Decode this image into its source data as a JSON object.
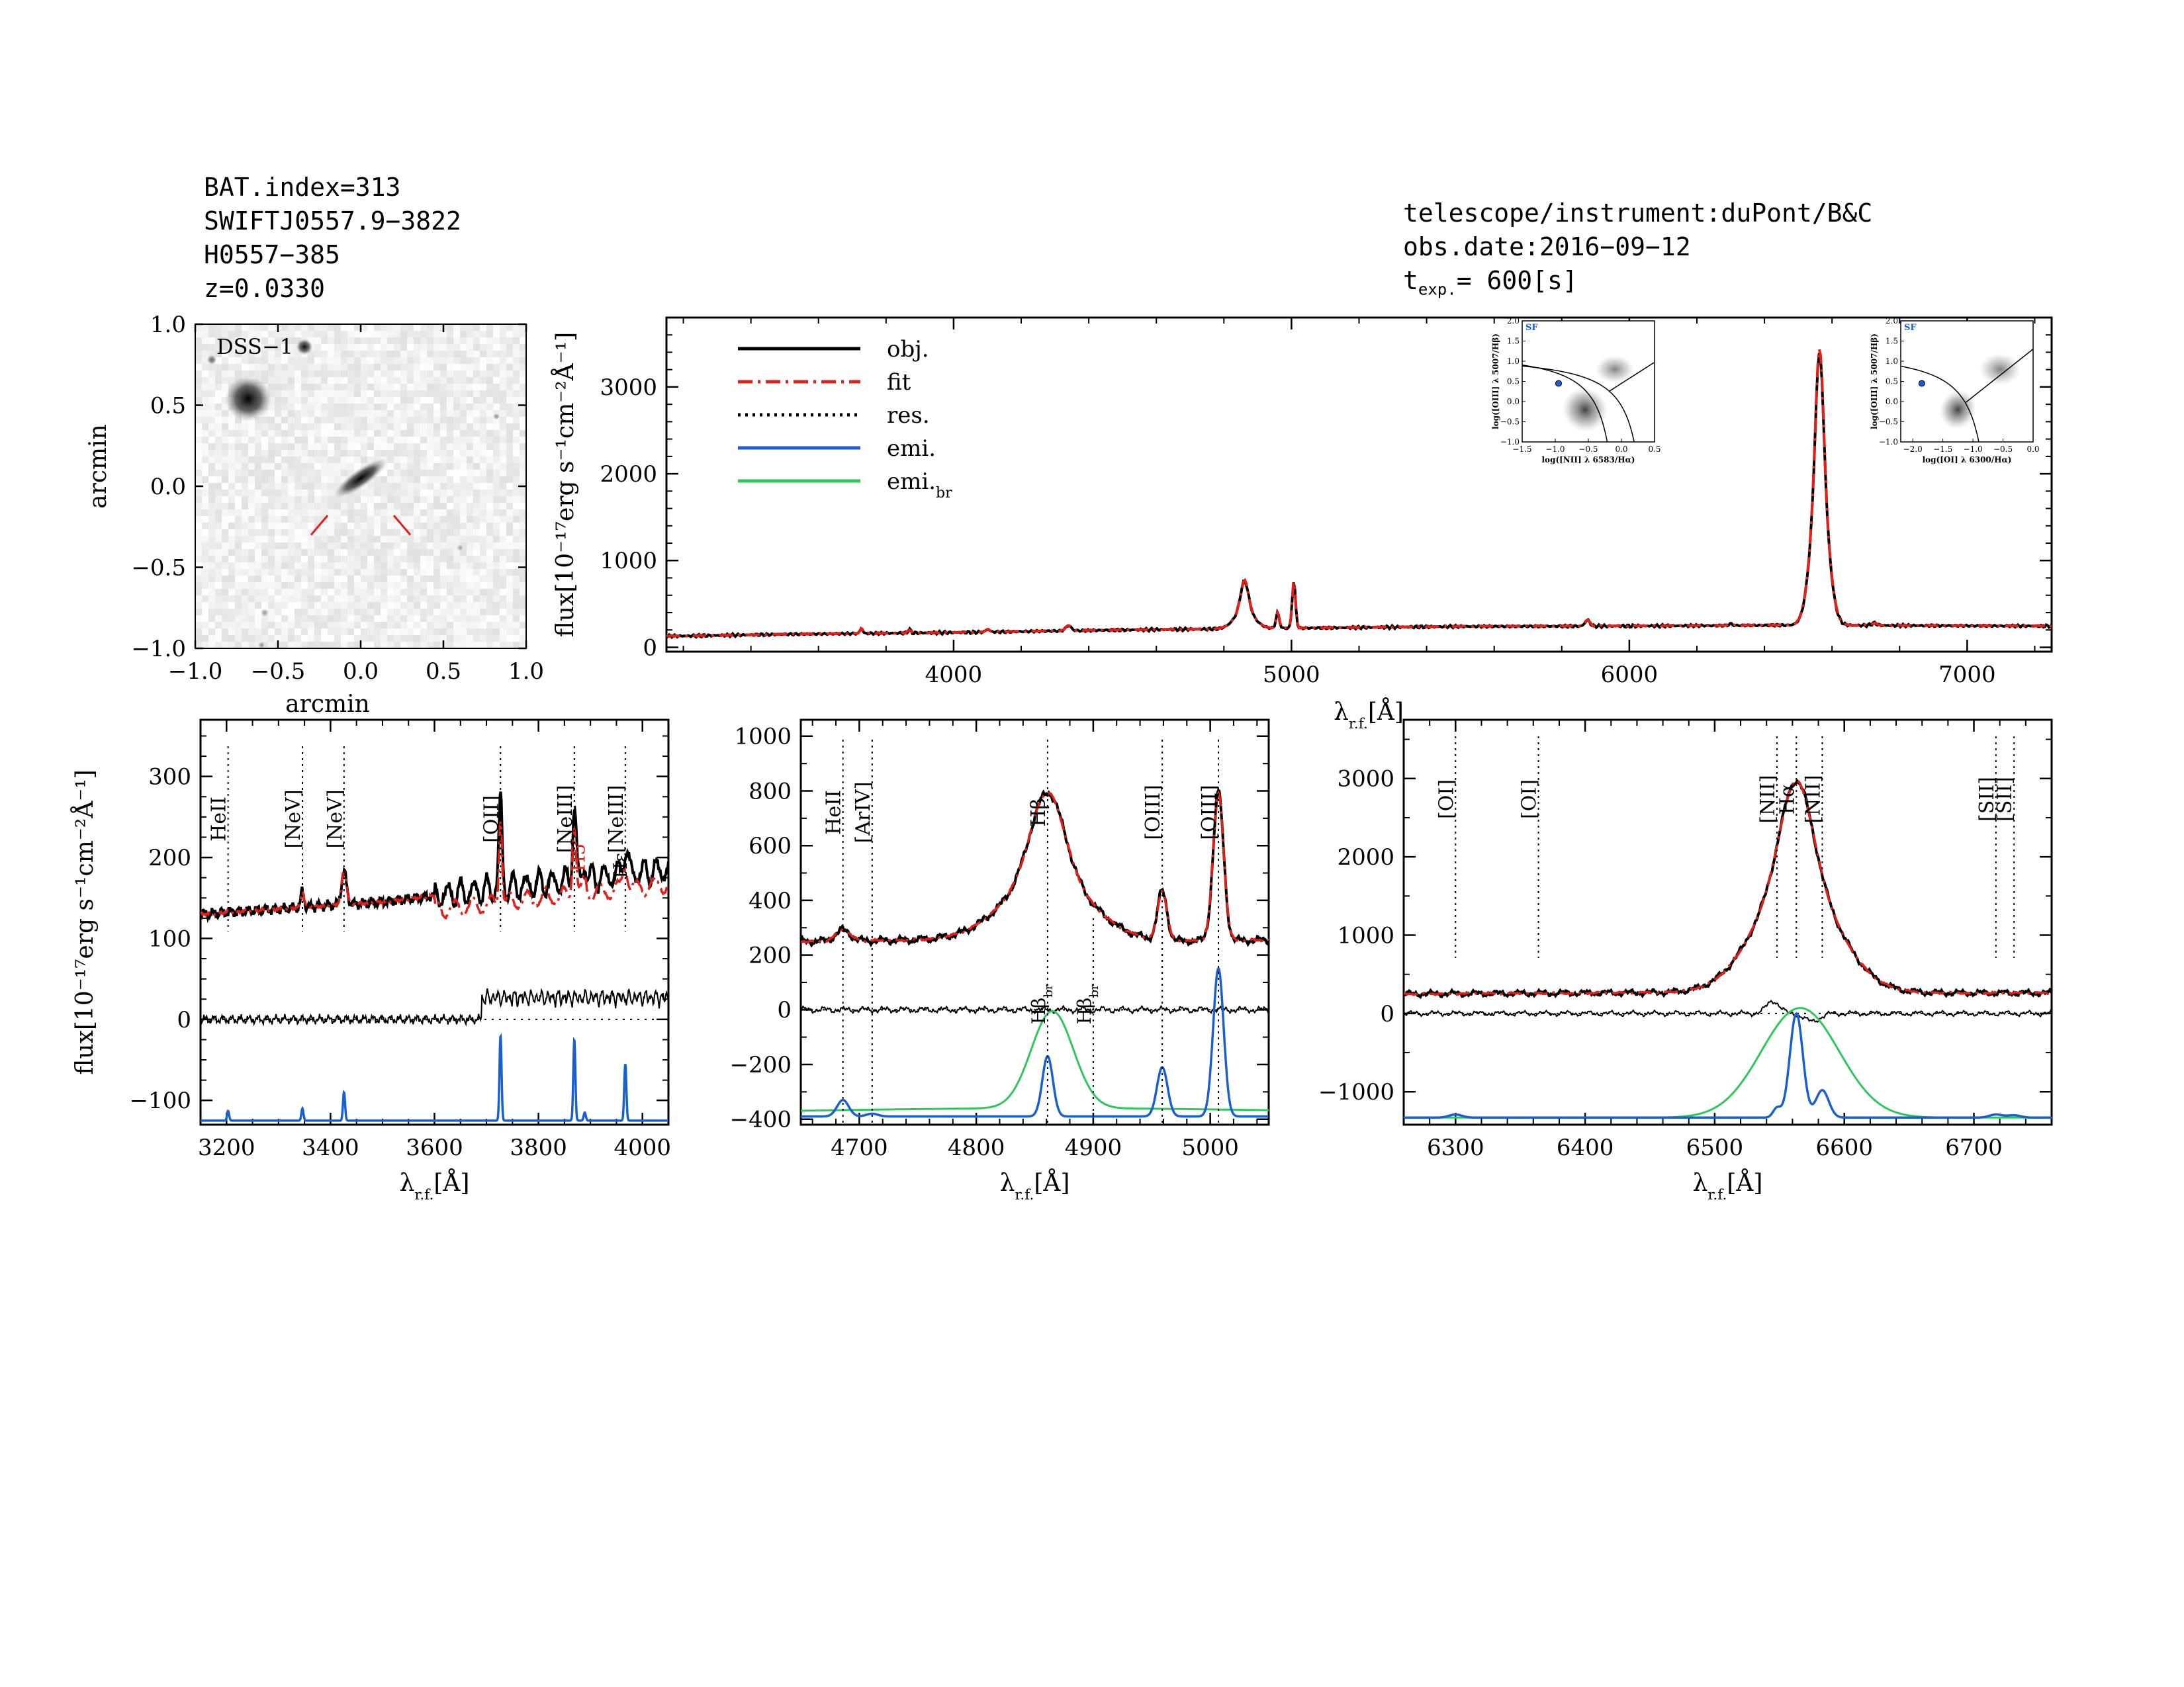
{
  "header_left": [
    "BAT.index=313",
    "SWIFTJ0557.9−3822",
    "H0557−385",
    "z=0.0330"
  ],
  "header_right": {
    "instrument": "telescope/instrument:duPont/B&C",
    "obs_date": "obs.date:2016−09−12",
    "texp_prefix": "t",
    "texp_sub": "exp.",
    "texp_value": "=  600[s]"
  },
  "colors": {
    "obj": "#000000",
    "fit": "#e0201a",
    "emi": "#1a5fd0",
    "emi_br": "#2ec85a"
  },
  "chart_data": [
    {
      "id": "image",
      "type": "image",
      "label": "DSS−1",
      "xlabel": "arcmin",
      "ylabel": "arcmin",
      "xlim": [
        -1.0,
        1.0
      ],
      "ylim": [
        -1.0,
        1.0
      ],
      "xticks": [
        -1.0,
        -0.5,
        0.0,
        0.5,
        1.0
      ],
      "yticks": [
        -1.0,
        -0.5,
        0.0,
        0.5,
        1.0
      ],
      "xtick_labels": [
        "−1.0",
        "−0.5",
        "0.0",
        "0.5",
        "1.0"
      ],
      "ytick_labels": [
        "−1.0",
        "−0.5",
        "0.0",
        "0.5",
        "1.0"
      ],
      "sources": [
        {
          "x": -0.68,
          "y": 0.54,
          "sx": 0.14,
          "sy": 0.14,
          "rot": 0,
          "amp": 1.0
        },
        {
          "x": -0.34,
          "y": 0.86,
          "sx": 0.05,
          "sy": 0.05,
          "rot": 0,
          "amp": 0.95
        },
        {
          "x": -0.9,
          "y": 0.78,
          "sx": 0.03,
          "sy": 0.03,
          "rot": 0,
          "amp": 0.6
        },
        {
          "x": 0.0,
          "y": 0.05,
          "sx": 0.19,
          "sy": 0.055,
          "rot": -35,
          "amp": 1.0
        },
        {
          "x": 0.82,
          "y": 0.43,
          "sx": 0.02,
          "sy": 0.02,
          "rot": 0,
          "amp": 0.4
        },
        {
          "x": -0.58,
          "y": -0.78,
          "sx": 0.025,
          "sy": 0.025,
          "rot": 0,
          "amp": 0.4
        },
        {
          "x": -0.6,
          "y": -0.98,
          "sx": 0.02,
          "sy": 0.02,
          "rot": 0,
          "amp": 0.4
        },
        {
          "x": 0.6,
          "y": -0.38,
          "sx": 0.02,
          "sy": 0.02,
          "rot": 0,
          "amp": 0.3
        }
      ],
      "markers": [
        [
          -0.2,
          -0.18,
          -0.3,
          -0.3
        ],
        [
          0.2,
          -0.18,
          0.3,
          -0.3
        ]
      ]
    },
    {
      "id": "main",
      "type": "line",
      "xlim": [
        3150,
        7250
      ],
      "ylim": [
        -50,
        3800
      ],
      "xticks": [
        4000,
        5000,
        6000,
        7000
      ],
      "yticks": [
        0,
        1000,
        2000,
        3000
      ],
      "ylabel": "flux[10⁻¹⁷erg s⁻¹cm⁻²Å⁻¹]",
      "xlabel": "λr.f.[Å]",
      "xlabel_main": "λ",
      "xlabel_sub": "r.f.",
      "xlabel_unit": "[Å]",
      "continuum": [
        [
          3200,
          130
        ],
        [
          3500,
          150
        ],
        [
          4000,
          170
        ],
        [
          4500,
          200
        ],
        [
          5000,
          220
        ],
        [
          5500,
          240
        ],
        [
          6000,
          245
        ],
        [
          6500,
          255
        ],
        [
          7200,
          245
        ]
      ],
      "lines": [
        {
          "c": 3727,
          "a": 60,
          "s": 4
        },
        {
          "c": 3869,
          "a": 40,
          "s": 4
        },
        {
          "c": 4101,
          "a": 30,
          "s": 6
        },
        {
          "c": 4340,
          "a": 60,
          "s": 8
        },
        {
          "c": 4861,
          "a": 330,
          "s": 11
        },
        {
          "c": 4861,
          "a": 220,
          "s": 28
        },
        {
          "c": 4959,
          "a": 180,
          "s": 5
        },
        {
          "c": 5007,
          "a": 540,
          "s": 5
        },
        {
          "c": 5876,
          "a": 70,
          "s": 7
        },
        {
          "c": 6563,
          "a": 1400,
          "s": 11
        },
        {
          "c": 6563,
          "a": 1750,
          "s": 24
        },
        {
          "c": 6300,
          "a": 20,
          "s": 5
        },
        {
          "c": 6725,
          "a": 25,
          "s": 8
        }
      ],
      "legend": [
        {
          "label": "obj.",
          "style": "solid",
          "color": "#000000"
        },
        {
          "label": "fit",
          "style": "dashdot",
          "color": "#e0201a"
        },
        {
          "label": "res.",
          "style": "dotted",
          "color": "#000000"
        },
        {
          "label": "emi.",
          "style": "solid",
          "color": "#1a5fd0"
        },
        {
          "label": "emi.",
          "sub": "br",
          "style": "solid",
          "color": "#2ec85a"
        }
      ]
    },
    {
      "id": "inset1",
      "type": "scatter",
      "tag": "SF",
      "xlim": [
        -1.5,
        0.5
      ],
      "ylim": [
        -1.0,
        2.0
      ],
      "xticks": [
        -1.5,
        -1.0,
        -0.5,
        0.0,
        0.5
      ],
      "xtick_labels": [
        "−1.5",
        "−1.0",
        "−0.5",
        "0.0",
        "0.5"
      ],
      "yticks": [
        -1.0,
        -0.5,
        0.0,
        0.5,
        1.0,
        1.5,
        2.0
      ],
      "ytick_labels": [
        "−1.0",
        "−0.5",
        "0.0",
        "0.5",
        "1.0",
        "1.5",
        "2.0"
      ],
      "xlabel": "log([NII] λ 6583/Hα)",
      "ylabel": "log([OIII] λ 5007/Hβ)",
      "point": [
        -0.95,
        0.45
      ],
      "blobs": [
        {
          "x": -0.55,
          "y": -0.2,
          "sx": 0.35,
          "sy": 0.55,
          "rot": 30,
          "amp": 0.9
        },
        {
          "x": -0.1,
          "y": 0.8,
          "sx": 0.3,
          "sy": 0.35,
          "rot": 0,
          "amp": 0.6
        }
      ],
      "curves": [
        "kauffmann",
        "kewley_nii",
        "seyfert_liner_nii"
      ]
    },
    {
      "id": "inset2",
      "type": "scatter",
      "tag": "SF",
      "xlim": [
        -2.2,
        0.0
      ],
      "ylim": [
        -1.0,
        2.0
      ],
      "xticks": [
        -2.0,
        -1.5,
        -1.0,
        -0.5,
        0.0
      ],
      "xtick_labels": [
        "−2.0",
        "−1.5",
        "−1.0",
        "−0.5",
        "0.0"
      ],
      "yticks": [
        -1.0,
        -0.5,
        0.0,
        0.5,
        1.0,
        1.5,
        2.0
      ],
      "ytick_labels": [
        "−1.0",
        "−0.5",
        "0.0",
        "0.5",
        "1.0",
        "1.5",
        "2.0"
      ],
      "xlabel": "log([OI] λ 6300/Hα)",
      "ylabel": "log([OIII] λ 5007/Hβ)",
      "point": [
        -1.85,
        0.45
      ],
      "blobs": [
        {
          "x": -1.25,
          "y": -0.2,
          "sx": 0.3,
          "sy": 0.5,
          "rot": 25,
          "amp": 0.9
        },
        {
          "x": -0.55,
          "y": 0.8,
          "sx": 0.35,
          "sy": 0.4,
          "rot": 0,
          "amp": 0.6
        }
      ],
      "curves": [
        "kewley_oi",
        "seyfert_liner_oi"
      ]
    },
    {
      "id": "zoom1",
      "type": "line",
      "xlim": [
        3150,
        4050
      ],
      "ylim": [
        -130,
        370
      ],
      "xticks": [
        3200,
        3400,
        3600,
        3800,
        4000
      ],
      "yticks": [
        -100,
        0,
        100,
        200,
        300
      ],
      "ytick_labels": [
        "−100",
        "0",
        "100",
        "200",
        "300"
      ],
      "ylabel": "flux[10⁻¹⁷erg s⁻¹cm⁻²Å⁻¹]",
      "xlabel": "λr.f.[Å]",
      "continuum": [
        [
          3150,
          130
        ],
        [
          3500,
          145
        ],
        [
          3700,
          160
        ],
        [
          4050,
          185
        ]
      ],
      "lines": [
        {
          "c": 3346,
          "a": 20,
          "s": 3
        },
        {
          "c": 3426,
          "a": 40,
          "s": 5
        },
        {
          "c": 3727,
          "a": 110,
          "s": 3
        },
        {
          "c": 3869,
          "a": 90,
          "s": 3.5
        },
        {
          "c": 3967,
          "a": 30,
          "s": 5
        },
        {
          "c": 3889,
          "a": 20,
          "s": 3
        }
      ],
      "emi": [
        {
          "c": 3203,
          "a": 12,
          "s": 2
        },
        {
          "c": 3346,
          "a": 15,
          "s": 2
        },
        {
          "c": 3426,
          "a": 35,
          "s": 2
        },
        {
          "c": 3727,
          "a": 105,
          "s": 2
        },
        {
          "c": 3869,
          "a": 100,
          "s": 2
        },
        {
          "c": 3889,
          "a": 10,
          "s": 2
        },
        {
          "c": 3967,
          "a": 70,
          "s": 2
        }
      ],
      "emi_base": -125,
      "res_dotted_from": 3690,
      "fit_dashed_from": 3600,
      "line_labels": [
        {
          "x": 3203,
          "label": "HeII"
        },
        {
          "x": 3346,
          "label": "[NeV]"
        },
        {
          "x": 3426,
          "label": "[NeV]"
        },
        {
          "x": 3727,
          "label": "[OII]"
        },
        {
          "x": 3869,
          "label": "[NeIII]"
        },
        {
          "x": 3967,
          "label": "[NeIII]"
        }
      ],
      "extra_labels": [
        {
          "x": 3889,
          "y": 200,
          "label": "H5",
          "color": "#e0201a"
        },
        {
          "x": 3970,
          "y": 190,
          "label": "Hε",
          "color": "#000000"
        }
      ]
    },
    {
      "id": "zoom2",
      "type": "line",
      "xlim": [
        4650,
        5050
      ],
      "ylim": [
        -420,
        1060
      ],
      "xticks": [
        4700,
        4800,
        4900,
        5000
      ],
      "yticks": [
        -400,
        -200,
        0,
        200,
        400,
        600,
        800,
        1000
      ],
      "ytick_labels": [
        "−400",
        "−200",
        "0",
        "200",
        "400",
        "600",
        "800",
        "1000"
      ],
      "xlabel": "λr.f.[Å]",
      "continuum": [
        [
          4650,
          250
        ],
        [
          4750,
          255
        ],
        [
          4850,
          265
        ],
        [
          4950,
          250
        ],
        [
          5050,
          255
        ]
      ],
      "lines": [
        {
          "c": 4686,
          "a": 40,
          "s": 6
        },
        {
          "c": 4861,
          "a": 300,
          "s": 14
        },
        {
          "c": 4861,
          "a": 230,
          "s": 35
        },
        {
          "c": 4959,
          "a": 180,
          "s": 4
        },
        {
          "c": 5007,
          "a": 540,
          "s": 4.5
        }
      ],
      "emi": [
        {
          "c": 4686,
          "a": 60,
          "s": 5
        },
        {
          "c": 4711,
          "a": 10,
          "s": 5
        },
        {
          "c": 4861,
          "a": 220,
          "s": 4.5
        },
        {
          "c": 4959,
          "a": 180,
          "s": 4.5
        },
        {
          "c": 5007,
          "a": 540,
          "s": 4.5
        }
      ],
      "emi_base": -390,
      "broad": {
        "c": 4865,
        "a": 355,
        "s": 18,
        "base": -390,
        "wing_a": 30,
        "wing_s": 250
      },
      "line_labels": [
        {
          "x": 4686,
          "label": "HeII"
        },
        {
          "x": 4711,
          "label": "[ArIV]"
        },
        {
          "x": 4861,
          "label": "Hβ"
        },
        {
          "x": 4959,
          "label": "[OIII]"
        },
        {
          "x": 5007,
          "label": "[OIII]"
        }
      ],
      "br_labels": [
        {
          "x": 4861,
          "label": "Hβ",
          "sub": "br"
        },
        {
          "x": 4900,
          "label": "Hβ",
          "sub": "br"
        }
      ]
    },
    {
      "id": "zoom3",
      "type": "line",
      "xlim": [
        6260,
        6760
      ],
      "ylim": [
        -1420,
        3750
      ],
      "xticks": [
        6300,
        6400,
        6500,
        6600,
        6700
      ],
      "yticks": [
        -1000,
        0,
        1000,
        2000,
        3000
      ],
      "ytick_labels": [
        "−1000",
        "0",
        "1000",
        "2000",
        "3000"
      ],
      "xlabel": "λr.f.[Å]",
      "continuum": [
        [
          6260,
          250
        ],
        [
          6500,
          270
        ],
        [
          6760,
          260
        ]
      ],
      "lines": [
        {
          "c": 6563,
          "a": 1200,
          "s": 12
        },
        {
          "c": 6563,
          "a": 1500,
          "s": 30
        }
      ],
      "emi": [
        {
          "c": 6300,
          "a": 40,
          "s": 5
        },
        {
          "c": 6548,
          "a": 120,
          "s": 3
        },
        {
          "c": 6563,
          "a": 1330,
          "s": 5
        },
        {
          "c": 6583,
          "a": 350,
          "s": 5
        },
        {
          "c": 6717,
          "a": 40,
          "s": 5
        },
        {
          "c": 6731,
          "a": 30,
          "s": 5
        }
      ],
      "emi_base": -1330,
      "broad": {
        "c": 6566,
        "a": 1400,
        "s": 30,
        "base": -1330
      },
      "line_labels": [
        {
          "x": 6300,
          "label": "[OI]"
        },
        {
          "x": 6364,
          "label": "[OI]"
        },
        {
          "x": 6548,
          "label": "[NII]"
        },
        {
          "x": 6563,
          "label": "Hα"
        },
        {
          "x": 6583,
          "label": "[NII]"
        },
        {
          "x": 6717,
          "label": "[SII]"
        },
        {
          "x": 6731,
          "label": "[SII]"
        }
      ]
    }
  ]
}
